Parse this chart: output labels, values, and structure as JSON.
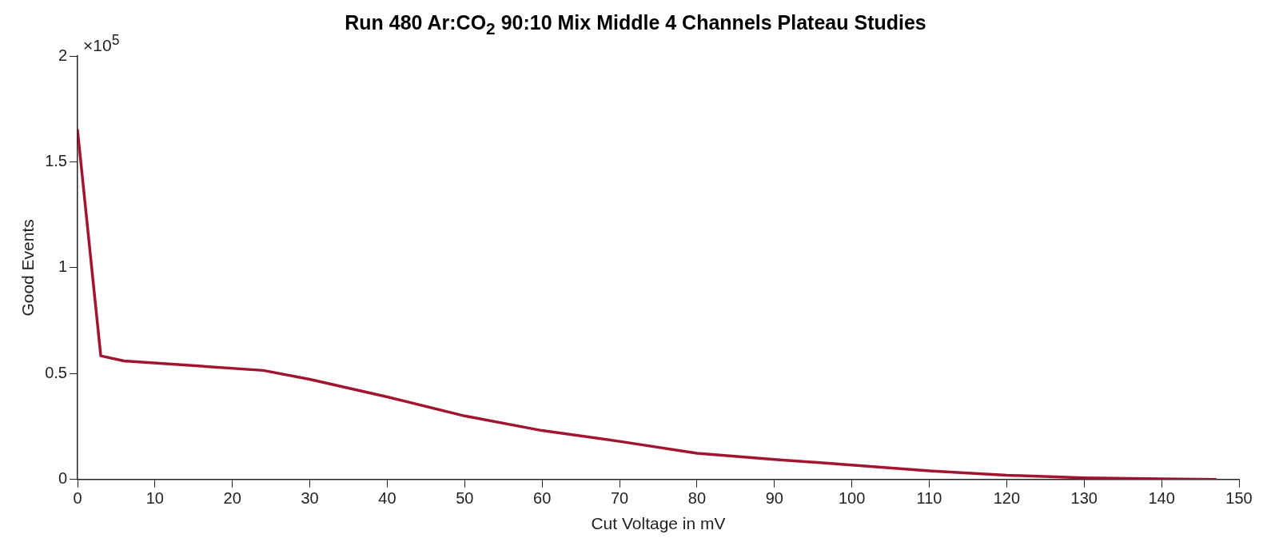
{
  "chart_data": {
    "type": "line",
    "title": "Run 480 Ar:CO$_{2}$ 90:10 Mix Middle 4 Channels Plateau Studies",
    "xlabel": "Cut Voltage in mV",
    "ylabel": "Good Events",
    "annotations": [
      "×10$^{5}$"
    ],
    "x": [
      0,
      3,
      6,
      24,
      30,
      40,
      50,
      60,
      70,
      80,
      90,
      100,
      110,
      120,
      130,
      140,
      147
    ],
    "series": [
      {
        "color": "#a2142f",
        "values": [
          1.65,
          0.584,
          0.56,
          0.515,
          0.473,
          0.39,
          0.3,
          0.231,
          0.18,
          0.124,
          0.095,
          0.068,
          0.041,
          0.02,
          0.008,
          0.003,
          0
        ]
      }
    ],
    "xlim": [
      0,
      150
    ],
    "xticks": [
      0,
      10,
      20,
      30,
      40,
      50,
      60,
      70,
      80,
      90,
      100,
      110,
      120,
      130,
      140,
      150
    ],
    "ylim": [
      0,
      2
    ],
    "yticks": [
      0,
      0.5,
      1,
      1.5,
      2
    ],
    "grid": false,
    "legend": false,
    "marker": "none",
    "line_style": "solid"
  }
}
